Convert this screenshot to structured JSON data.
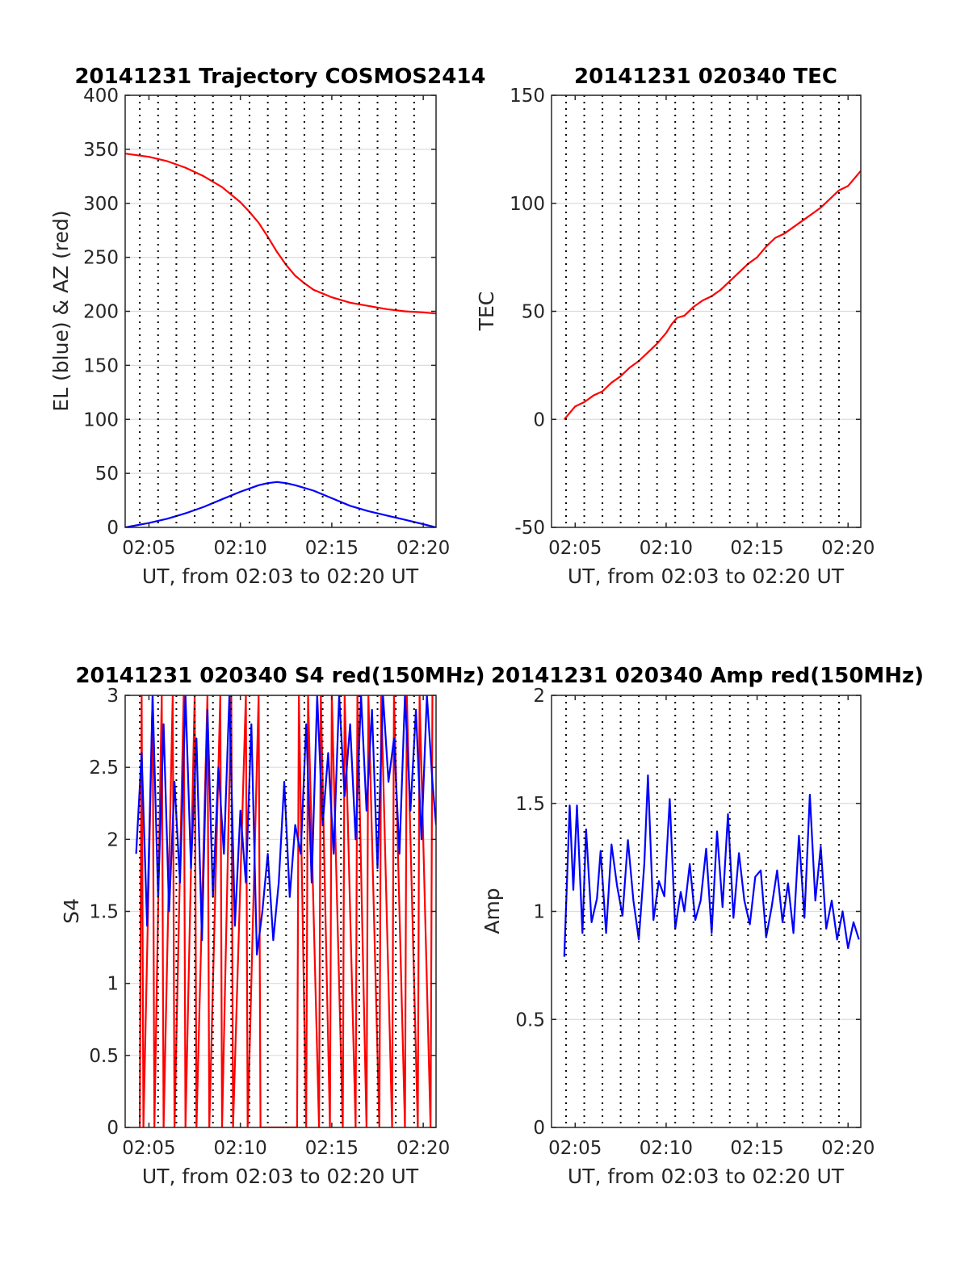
{
  "chart_data": [
    {
      "id": "traj",
      "type": "line",
      "title": "20141231 Trajectory COSMOS2414",
      "xlabel": "UT, from 02:03 to 02:20 UT",
      "ylabel": "EL (blue) & AZ (red)",
      "xlim": [
        3.7,
        20.7
      ],
      "ylim": [
        0,
        400
      ],
      "yticks": [
        0,
        50,
        100,
        150,
        200,
        250,
        300,
        350,
        400
      ],
      "xticks": [
        5,
        10,
        15,
        20
      ],
      "xticklabels": [
        "02:05",
        "02:10",
        "02:15",
        "02:20"
      ],
      "vgrid": [
        4.5,
        5.5,
        6.5,
        7.5,
        8.5,
        9.5,
        10.5,
        11.5,
        12.5,
        13.5,
        14.5,
        15.5,
        16.5,
        17.5,
        18.5,
        19.5
      ],
      "grid": true,
      "series": [
        {
          "color": "#ff0000",
          "x": [
            3.7,
            5,
            6,
            7,
            8,
            9,
            10,
            10.5,
            11,
            11.5,
            12,
            12.5,
            13,
            13.5,
            14,
            15,
            16,
            17,
            18,
            19,
            20,
            20.7
          ],
          "y": [
            346,
            343,
            339,
            333,
            325,
            315,
            301,
            292,
            282,
            269,
            255,
            243,
            233,
            226,
            220,
            213,
            208,
            205,
            202,
            200,
            199,
            198
          ]
        },
        {
          "color": "#0000ff",
          "x": [
            3.7,
            5,
            6,
            7,
            8,
            9,
            10,
            11,
            11.5,
            12,
            12.5,
            13,
            14,
            15,
            16,
            17,
            18,
            19,
            20,
            20.7
          ],
          "y": [
            0,
            4,
            8,
            13,
            19,
            26,
            33,
            39,
            41,
            42,
            41,
            39,
            34,
            27,
            20,
            15,
            11,
            7,
            3,
            0
          ]
        }
      ]
    },
    {
      "id": "tec",
      "type": "line",
      "title": "20141231 020340 TEC",
      "xlabel": "UT, from 02:03 to 02:20 UT",
      "ylabel": "TEC",
      "xlim": [
        3.7,
        20.7
      ],
      "ylim": [
        -50,
        150
      ],
      "yticks": [
        -50,
        0,
        50,
        100,
        150
      ],
      "xticks": [
        5,
        10,
        15,
        20
      ],
      "xticklabels": [
        "02:05",
        "02:10",
        "02:15",
        "02:20"
      ],
      "vgrid": [
        4.5,
        5.5,
        6.5,
        7.5,
        8.5,
        9.5,
        10.5,
        11.5,
        12.5,
        13.5,
        14.5,
        15.5,
        16.5,
        17.5,
        18.5,
        19.5
      ],
      "grid": true,
      "series": [
        {
          "color": "#ff0000",
          "x": [
            4.4,
            5,
            5.5,
            6,
            6.5,
            7,
            7.5,
            8,
            8.5,
            9,
            9.5,
            10,
            10.3,
            10.6,
            11,
            11.5,
            12,
            12.5,
            13,
            13.5,
            14,
            14.5,
            15,
            15.5,
            16,
            16.5,
            17,
            17.5,
            18,
            18.5,
            19,
            19.5,
            20,
            20.7
          ],
          "y": [
            0,
            6,
            8,
            11,
            13,
            17,
            20,
            24,
            27,
            31,
            35,
            40,
            44,
            47,
            48,
            52,
            55,
            57,
            60,
            64,
            68,
            72,
            75,
            80,
            84,
            86,
            89,
            92,
            95,
            98,
            102,
            106,
            108,
            115
          ]
        }
      ]
    },
    {
      "id": "s4",
      "type": "line",
      "title": "20141231 020340 S4 red(150MHz)",
      "xlabel": "UT, from 02:03 to 02:20 UT",
      "ylabel": "S4",
      "xlim": [
        3.7,
        20.7
      ],
      "ylim": [
        0,
        3
      ],
      "yticks": [
        0,
        0.5,
        1,
        1.5,
        2,
        2.5,
        3
      ],
      "xticks": [
        5,
        10,
        15,
        20
      ],
      "xticklabels": [
        "02:05",
        "02:10",
        "02:15",
        "02:20"
      ],
      "vgrid": [
        4.5,
        5.5,
        6.5,
        7.5,
        8.5,
        9.5,
        10.5,
        11.5,
        12.5,
        13.5,
        14.5,
        15.5,
        16.5,
        17.5,
        18.5,
        19.5
      ],
      "grid": true,
      "series": [
        {
          "color": "#ff0000",
          "x": [
            4.5,
            4.6,
            4.7,
            5.2,
            5.3,
            5.7,
            5.8,
            6.3,
            6.4,
            6.9,
            7.0,
            7.5,
            7.6,
            8.2,
            8.3,
            8.9,
            9.0,
            9.5,
            9.6,
            10.3,
            10.4,
            11.0,
            11.1,
            12.0,
            13.1,
            13.2,
            13.6,
            13.7,
            14.3,
            14.4,
            14.9,
            15.0,
            15.6,
            15.7,
            16.3,
            16.4,
            16.9,
            17.0,
            17.6,
            17.7,
            18.3,
            18.4,
            19.0,
            19.1,
            19.7,
            19.8,
            20.4,
            20.5
          ],
          "y": [
            0,
            3,
            0,
            3,
            0,
            3,
            0,
            3,
            0,
            3,
            0,
            3,
            0,
            3,
            0,
            3,
            0,
            3,
            0,
            3,
            0,
            3,
            0,
            0,
            0,
            3,
            0,
            3,
            0,
            3,
            0,
            3,
            0,
            3,
            0,
            3,
            0,
            3,
            0,
            3,
            0,
            3,
            0,
            3,
            0,
            3,
            0,
            3
          ]
        },
        {
          "color": "#0000ff",
          "x": [
            4.3,
            4.6,
            4.9,
            5.2,
            5.5,
            5.8,
            6.1,
            6.4,
            6.7,
            7.0,
            7.3,
            7.6,
            7.9,
            8.2,
            8.5,
            8.8,
            9.1,
            9.4,
            9.7,
            10.0,
            10.3,
            10.6,
            10.9,
            11.2,
            11.5,
            11.8,
            12.1,
            12.4,
            12.7,
            13.0,
            13.3,
            13.6,
            13.9,
            14.2,
            14.5,
            14.8,
            15.1,
            15.4,
            15.7,
            16.0,
            16.3,
            16.6,
            16.9,
            17.2,
            17.5,
            17.8,
            18.1,
            18.4,
            18.7,
            19.0,
            19.3,
            19.6,
            19.9,
            20.2,
            20.5,
            20.7
          ],
          "y": [
            1.9,
            2.6,
            1.4,
            3.0,
            1.6,
            2.8,
            1.5,
            2.4,
            1.7,
            3.0,
            1.8,
            2.7,
            1.3,
            2.9,
            1.6,
            2.5,
            1.9,
            3.0,
            1.4,
            2.2,
            1.7,
            2.8,
            1.2,
            1.5,
            1.9,
            1.3,
            1.7,
            2.4,
            1.6,
            2.1,
            1.9,
            2.8,
            1.7,
            3.0,
            2.1,
            2.6,
            1.9,
            3.0,
            2.3,
            2.8,
            2.0,
            3.0,
            2.2,
            2.9,
            1.8,
            3.0,
            2.4,
            2.7,
            1.9,
            3.0,
            2.2,
            2.9,
            2.0,
            3.0,
            2.4,
            2.1
          ]
        }
      ]
    },
    {
      "id": "amp",
      "type": "line",
      "title": "20141231 020340 Amp red(150MHz)",
      "xlabel": "UT, from 02:03 to 02:20 UT",
      "ylabel": "Amp",
      "xlim": [
        3.7,
        20.7
      ],
      "ylim": [
        0,
        2
      ],
      "yticks": [
        0,
        0.5,
        1,
        1.5,
        2
      ],
      "xticks": [
        5,
        10,
        15,
        20
      ],
      "xticklabels": [
        "02:05",
        "02:10",
        "02:15",
        "02:20"
      ],
      "vgrid": [
        4.5,
        5.5,
        6.5,
        7.5,
        8.5,
        9.5,
        10.5,
        11.5,
        12.5,
        13.5,
        14.5,
        15.5,
        16.5,
        17.5,
        18.5,
        19.5
      ],
      "grid": true,
      "series": [
        {
          "color": "#0000ff",
          "x": [
            4.4,
            4.7,
            4.9,
            5.1,
            5.4,
            5.6,
            5.9,
            6.2,
            6.4,
            6.7,
            7.0,
            7.3,
            7.6,
            7.9,
            8.2,
            8.5,
            8.8,
            9.0,
            9.3,
            9.6,
            9.9,
            10.2,
            10.5,
            10.8,
            11.0,
            11.3,
            11.6,
            11.9,
            12.2,
            12.5,
            12.8,
            13.1,
            13.4,
            13.7,
            14.0,
            14.3,
            14.6,
            14.9,
            15.2,
            15.5,
            15.8,
            16.1,
            16.4,
            16.7,
            17.0,
            17.3,
            17.6,
            17.9,
            18.2,
            18.5,
            18.8,
            19.1,
            19.4,
            19.7,
            20.0,
            20.3,
            20.6
          ],
          "y": [
            0.79,
            1.49,
            1.1,
            1.49,
            0.9,
            1.38,
            0.95,
            1.06,
            1.28,
            0.9,
            1.31,
            1.12,
            0.98,
            1.33,
            1.05,
            0.87,
            1.22,
            1.63,
            0.96,
            1.14,
            1.07,
            1.52,
            0.92,
            1.09,
            1.0,
            1.22,
            0.96,
            1.05,
            1.29,
            0.9,
            1.37,
            1.02,
            1.45,
            0.97,
            1.27,
            1.05,
            0.94,
            1.16,
            1.19,
            0.88,
            1.02,
            1.19,
            0.95,
            1.13,
            0.9,
            1.35,
            0.97,
            1.54,
            1.05,
            1.3,
            0.92,
            1.05,
            0.87,
            1.0,
            0.83,
            0.95,
            0.87
          ]
        }
      ]
    }
  ]
}
